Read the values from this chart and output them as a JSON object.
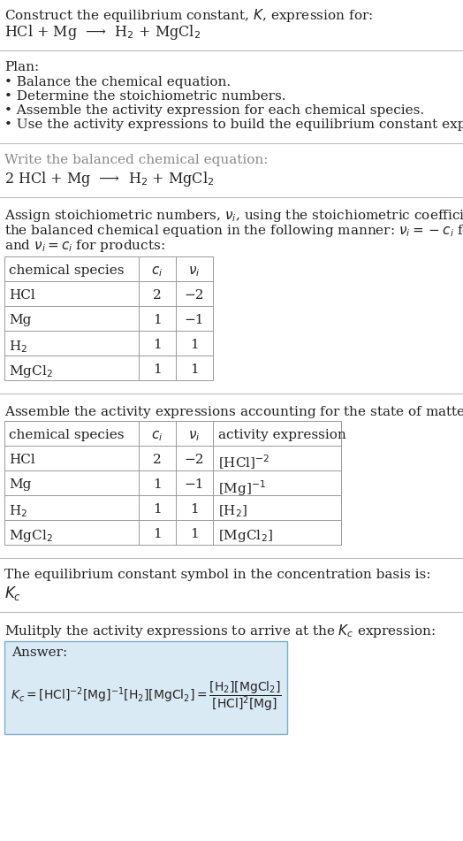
{
  "title_line1": "Construct the equilibrium constant, $K$, expression for:",
  "title_line2": "HCl + Mg  ⟶  H$_2$ + MgCl$_2$",
  "plan_header": "Plan:",
  "plan_bullets": [
    "• Balance the chemical equation.",
    "• Determine the stoichiometric numbers.",
    "• Assemble the activity expression for each chemical species.",
    "• Use the activity expressions to build the equilibrium constant expression."
  ],
  "balanced_header": "Write the balanced chemical equation:",
  "balanced_eq": "2 HCl + Mg  ⟶  H$_2$ + MgCl$_2$",
  "stoich_intro_lines": [
    "Assign stoichiometric numbers, $\\nu_i$, using the stoichiometric coefficients, $c_i$, from",
    "the balanced chemical equation in the following manner: $\\nu_i = -c_i$ for reactants",
    "and $\\nu_i = c_i$ for products:"
  ],
  "table1_headers": [
    "chemical species",
    "$c_i$",
    "$\\nu_i$"
  ],
  "table1_rows": [
    [
      "HCl",
      "2",
      "−2"
    ],
    [
      "Mg",
      "1",
      "−1"
    ],
    [
      "H$_2$",
      "1",
      "1"
    ],
    [
      "MgCl$_2$",
      "1",
      "1"
    ]
  ],
  "activity_intro": "Assemble the activity expressions accounting for the state of matter and $\\nu_i$:",
  "table2_headers": [
    "chemical species",
    "$c_i$",
    "$\\nu_i$",
    "activity expression"
  ],
  "table2_rows": [
    [
      "HCl",
      "2",
      "−2",
      "[HCl]$^{-2}$"
    ],
    [
      "Mg",
      "1",
      "−1",
      "[Mg]$^{-1}$"
    ],
    [
      "H$_2$",
      "1",
      "1",
      "[H$_2$]"
    ],
    [
      "MgCl$_2$",
      "1",
      "1",
      "[MgCl$_2$]"
    ]
  ],
  "kc_intro": "The equilibrium constant symbol in the concentration basis is:",
  "kc_symbol": "$K_c$",
  "multiply_intro": "Mulitply the activity expressions to arrive at the $K_c$ expression:",
  "answer_label": "Answer:",
  "bg_color": "#ffffff",
  "table_border_color": "#999999",
  "answer_bg_color": "#daeaf5",
  "answer_border_color": "#7aafc8",
  "text_color": "#222222",
  "separator_color": "#bbbbbb",
  "gray_text": "#888888"
}
